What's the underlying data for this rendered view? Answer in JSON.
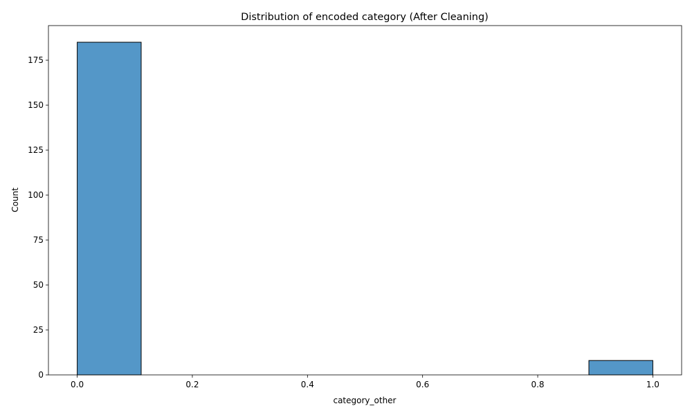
{
  "chart_data": {
    "type": "bar",
    "title": "Distribution of encoded category (After Cleaning)",
    "xlabel": "category_other",
    "ylabel": "Count",
    "xlim": [
      -0.05,
      1.05
    ],
    "ylim": [
      0,
      194.25
    ],
    "x_ticks": [
      0.0,
      0.2,
      0.4,
      0.6,
      0.8,
      1.0
    ],
    "x_tick_labels": [
      "0.0",
      "0.2",
      "0.4",
      "0.6",
      "0.8",
      "1.0"
    ],
    "y_ticks": [
      0,
      25,
      50,
      75,
      100,
      125,
      150,
      175
    ],
    "y_tick_labels": [
      "0",
      "25",
      "50",
      "75",
      "100",
      "125",
      "150",
      "175"
    ],
    "bins": [
      {
        "x0": 0.0,
        "x1": 0.1111,
        "count": 185
      },
      {
        "x0": 0.1111,
        "x1": 0.2222,
        "count": 0
      },
      {
        "x0": 0.2222,
        "x1": 0.3333,
        "count": 0
      },
      {
        "x0": 0.3333,
        "x1": 0.4444,
        "count": 0
      },
      {
        "x0": 0.4444,
        "x1": 0.5556,
        "count": 0
      },
      {
        "x0": 0.5556,
        "x1": 0.6667,
        "count": 0
      },
      {
        "x0": 0.6667,
        "x1": 0.7778,
        "count": 0
      },
      {
        "x0": 0.7778,
        "x1": 0.8889,
        "count": 0
      },
      {
        "x0": 0.8889,
        "x1": 1.0,
        "count": 8
      }
    ],
    "bar_color": "#5497c8",
    "edge_color": "#000000",
    "grid": false,
    "legend": "none"
  }
}
